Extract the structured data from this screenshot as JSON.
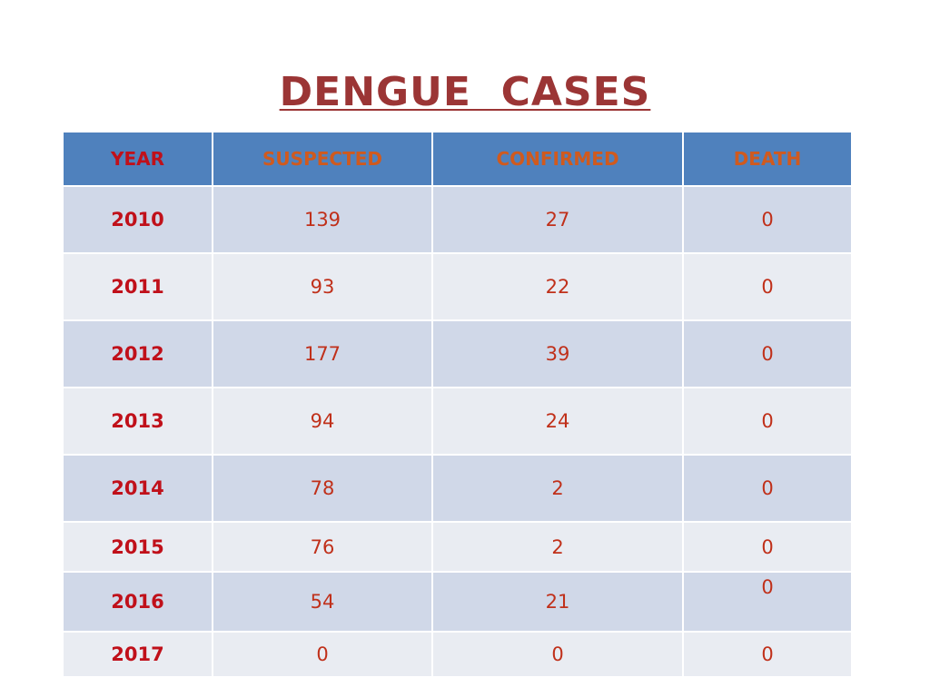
{
  "title": "DENGUE  CASES",
  "columns": [
    "YEAR",
    "SUSPECTED",
    "CONFIRMED",
    "DEATH"
  ],
  "rows": [
    {
      "year": "2010",
      "suspected": "139",
      "confirmed": "27",
      "death": "0"
    },
    {
      "year": "2011",
      "suspected": "93",
      "confirmed": "22",
      "death": "0"
    },
    {
      "year": "2012",
      "suspected": "177",
      "confirmed": "39",
      "death": "0"
    },
    {
      "year": "2013",
      "suspected": "94",
      "confirmed": "24",
      "death": "0"
    },
    {
      "year": "2014",
      "suspected": "78",
      "confirmed": "2",
      "death": "0"
    },
    {
      "year": "2015",
      "suspected": "76",
      "confirmed": "2",
      "death": "0"
    },
    {
      "year": "2016",
      "suspected": "54",
      "confirmed": "21",
      "death": "0"
    },
    {
      "year": "2017",
      "suspected": "0",
      "confirmed": "0",
      "death": "0"
    }
  ],
  "colors": {
    "title": "#9b3535",
    "header_bg": "#4f81bd",
    "header_text": "#d05a1e",
    "year_text": "#c0101a",
    "row_band_dark": "#d0d8e8",
    "row_band_light": "#e9ecf2"
  }
}
